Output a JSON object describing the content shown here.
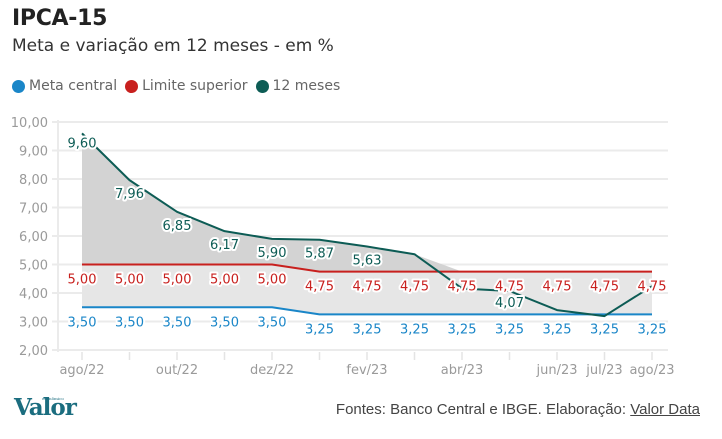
{
  "header": {
    "title": "IPCA-15",
    "subtitle": "Meta e variação em 12 meses - em %"
  },
  "legend": [
    {
      "label": "Meta central",
      "color": "#1a86c8"
    },
    {
      "label": "Limite superior",
      "color": "#c8201e"
    },
    {
      "label": "12 meses",
      "color": "#0d5c55"
    }
  ],
  "footer": {
    "logo": "Valor",
    "logo_sup": "econômico",
    "source_prefix": "Fontes: Banco Central e IBGE. Elaboração: ",
    "source_link": "Valor Data"
  },
  "chart_data": {
    "type": "line",
    "title": "IPCA-15",
    "subtitle": "Meta e variação em 12 meses - em %",
    "xlabel": "",
    "ylabel": "",
    "ylim": [
      2,
      10
    ],
    "yticks": [
      "10,00",
      "9,00",
      "8,00",
      "7,00",
      "6,00",
      "5,00",
      "4,00",
      "3,00",
      "2,00"
    ],
    "ytick_values": [
      10,
      9,
      8,
      7,
      6,
      5,
      4,
      3,
      2
    ],
    "grid": true,
    "legend_position": "top-left",
    "x": [
      "ago/22",
      "set/22",
      "out/22",
      "nov/22",
      "dez/22",
      "jan/23",
      "fev/23",
      "mar/23",
      "abr/23",
      "mai/23",
      "jun/23",
      "jul/23",
      "ago/23"
    ],
    "xtick_labels": [
      "ago/22",
      "",
      "out/22",
      "",
      "dez/22",
      "",
      "fev/23",
      "",
      "abr/23",
      "",
      "jun/23",
      "jul/23",
      "ago/23"
    ],
    "series": [
      {
        "name": "Meta central",
        "color": "#1a86c8",
        "values": [
          3.5,
          3.5,
          3.5,
          3.5,
          3.5,
          3.25,
          3.25,
          3.25,
          3.25,
          3.25,
          3.25,
          3.25,
          3.25
        ],
        "labels": [
          "3,50",
          "3,50",
          "3,50",
          "3,50",
          "3,50",
          "3,25",
          "3,25",
          "3,25",
          "3,25",
          "3,25",
          "3,25",
          "3,25",
          "3,25"
        ]
      },
      {
        "name": "Limite superior",
        "color": "#c8201e",
        "values": [
          5.0,
          5.0,
          5.0,
          5.0,
          5.0,
          4.75,
          4.75,
          4.75,
          4.75,
          4.75,
          4.75,
          4.75,
          4.75
        ],
        "labels": [
          "5,00",
          "5,00",
          "5,00",
          "5,00",
          "5,00",
          "4,75",
          "4,75",
          "4,75",
          "4,75",
          "4,75",
          "4,75",
          "4,75",
          "4,75"
        ]
      },
      {
        "name": "12 meses",
        "color": "#0d5c55",
        "values": [
          9.6,
          7.96,
          6.85,
          6.17,
          5.9,
          5.87,
          5.63,
          5.36,
          4.16,
          4.07,
          3.4,
          3.19,
          4.24
        ],
        "labels": [
          "9,60",
          "7,96",
          "6,85",
          "6,17",
          "5,90",
          "5,87",
          "5,63",
          "",
          "",
          "4,07",
          "",
          "",
          ""
        ]
      }
    ],
    "fills": [
      {
        "between": [
          "Meta central",
          "Limite superior"
        ],
        "color": "#e6e6e6"
      },
      {
        "between": [
          "Limite superior",
          "12 meses"
        ],
        "color": "#d3d3d3"
      }
    ]
  }
}
